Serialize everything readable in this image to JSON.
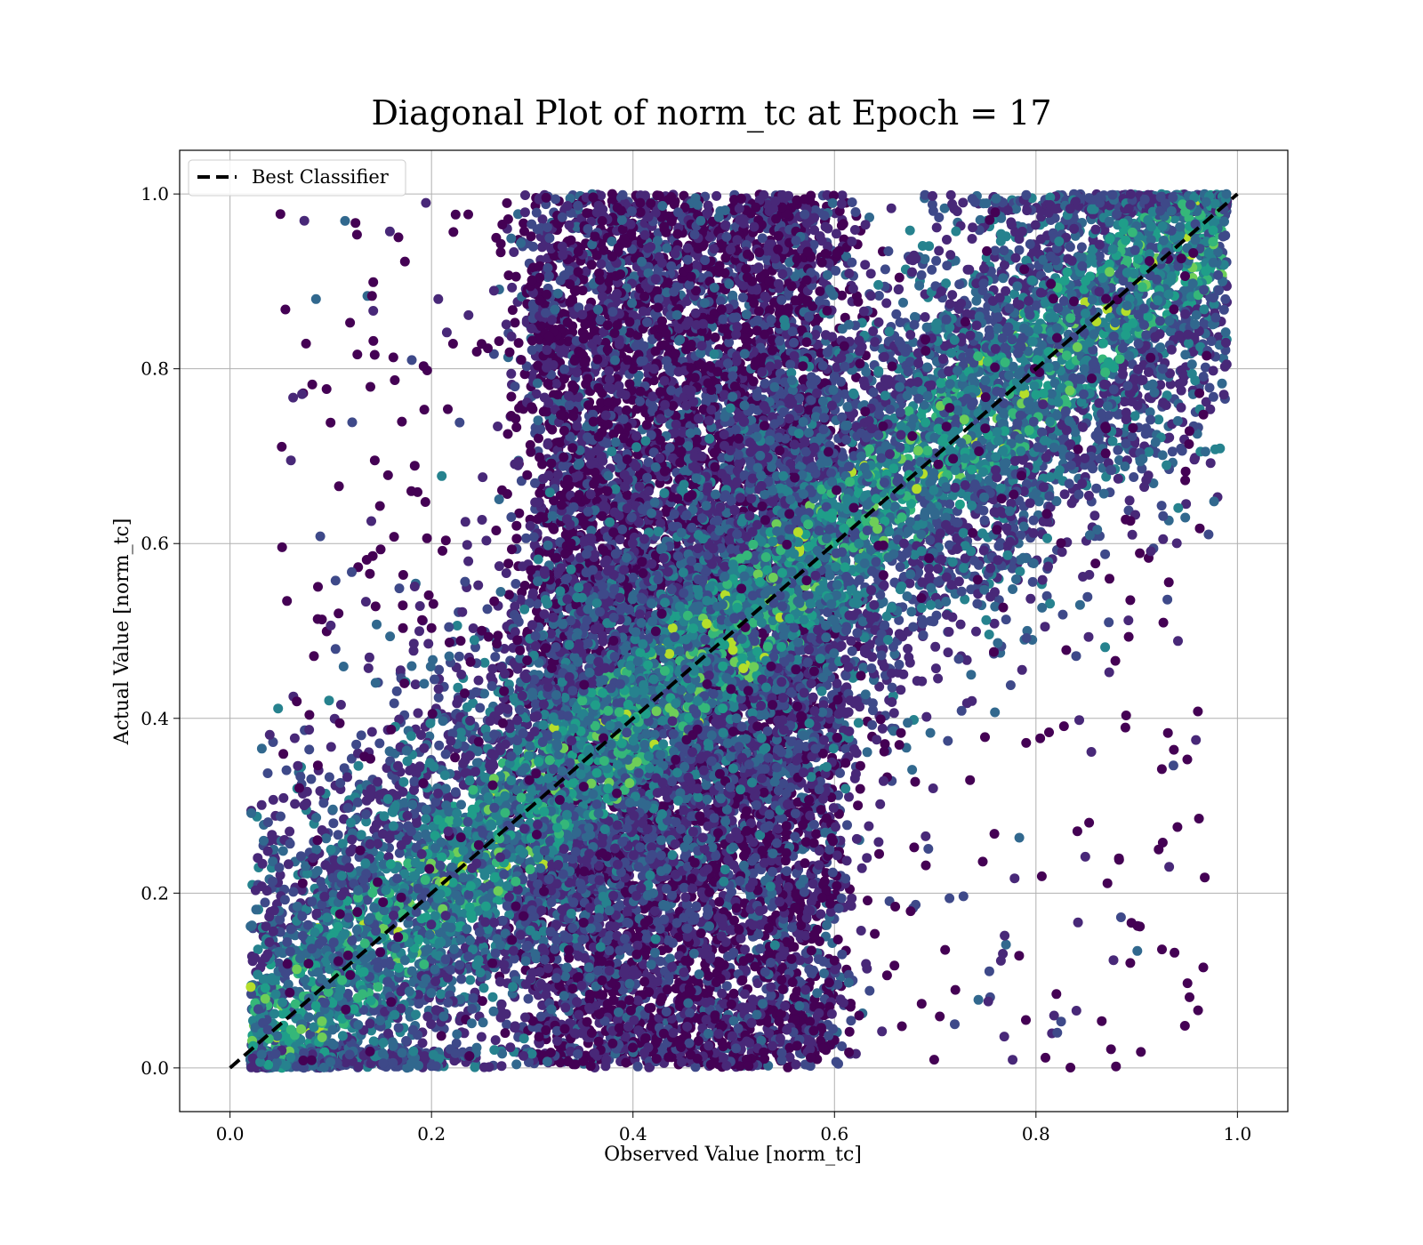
{
  "chart_data": {
    "type": "scatter",
    "title": "Diagonal Plot of norm_tc at Epoch = 17",
    "xlabel": "Observed Value [norm_tc]",
    "ylabel": "Actual Value [norm_tc]",
    "xlim": [
      -0.05,
      1.05
    ],
    "ylim": [
      -0.05,
      1.05
    ],
    "xticks": [
      "0.0",
      "0.2",
      "0.4",
      "0.6",
      "0.8",
      "1.0"
    ],
    "yticks": [
      "0.0",
      "0.2",
      "0.4",
      "0.6",
      "0.8",
      "1.0"
    ],
    "grid": true,
    "legend_placement": "upper-left",
    "colormap": "viridis",
    "colors": [
      "#440154",
      "#482878",
      "#3e4989",
      "#31688e",
      "#26828e",
      "#1f9e89",
      "#35b779",
      "#6ece58",
      "#b5de2b"
    ],
    "reference_line": {
      "name": "Best Classifier",
      "style": "dashed",
      "color": "#000000",
      "x": [
        0.0,
        1.0
      ],
      "y": [
        0.0,
        1.0
      ]
    },
    "point_density_description": "dense cloud of ~30000 points in a band along the diagonal; purple points spread in band x 0.3-0.6 over full y range; green/teal points concentrated near diagonal",
    "point_cloud": {
      "upper_band": {
        "x_range": [
          0.3,
          0.6
        ],
        "y_range": [
          0.0,
          1.0
        ]
      },
      "diagonal_band_half_width": 0.45,
      "x_range": [
        0.02,
        0.99
      ],
      "y_range": [
        0.0,
        1.0
      ]
    }
  }
}
